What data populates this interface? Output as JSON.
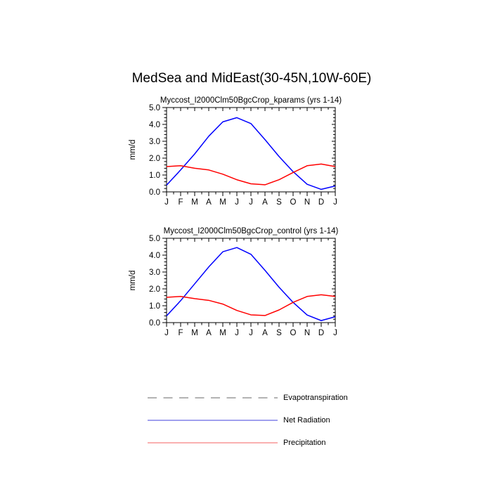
{
  "page": {
    "title": "MedSea and MidEast(30-45N,10W-60E)"
  },
  "axis_style": {
    "axis_color": "#000000",
    "background": "#ffffff"
  },
  "chart_data": [
    {
      "type": "line",
      "title": "Myccost_I2000Clm50BgcCrop_kparams (yrs 1-14)",
      "ylabel": "mm/d",
      "ylim": [
        0.0,
        5.0
      ],
      "ytick_labels": [
        "0.0",
        "1.0",
        "2.0",
        "3.0",
        "4.0",
        "5.0"
      ],
      "yminor_step": 0.2,
      "x_labels": [
        "J",
        "F",
        "M",
        "A",
        "M",
        "J",
        "J",
        "A",
        "S",
        "O",
        "N",
        "D",
        "J"
      ],
      "grid": false,
      "legend_position": "none",
      "series": [
        {
          "name": "Net Radiation",
          "color": "#0000ff",
          "values": [
            0.4,
            1.3,
            2.25,
            3.3,
            4.15,
            4.4,
            4.05,
            3.1,
            2.1,
            1.2,
            0.45,
            0.15,
            0.35
          ]
        },
        {
          "name": "Precipitation",
          "color": "#ff0000",
          "values": [
            1.5,
            1.55,
            1.4,
            1.3,
            1.05,
            0.72,
            0.48,
            0.42,
            0.72,
            1.15,
            1.55,
            1.65,
            1.5
          ]
        }
      ]
    },
    {
      "type": "line",
      "title": "Myccost_I2000Clm50BgcCrop_control (yrs 1-14)",
      "ylabel": "mm/d",
      "ylim": [
        0.0,
        5.0
      ],
      "ytick_labels": [
        "0.0",
        "1.0",
        "2.0",
        "3.0",
        "4.0",
        "5.0"
      ],
      "yminor_step": 0.2,
      "x_labels": [
        "J",
        "F",
        "M",
        "A",
        "M",
        "J",
        "J",
        "A",
        "S",
        "O",
        "N",
        "D",
        "J"
      ],
      "grid": false,
      "legend_position": "none",
      "series": [
        {
          "name": "Net Radiation",
          "color": "#0000ff",
          "values": [
            0.4,
            1.3,
            2.3,
            3.3,
            4.2,
            4.45,
            4.05,
            3.1,
            2.1,
            1.2,
            0.45,
            0.12,
            0.35
          ]
        },
        {
          "name": "Precipitation",
          "color": "#ff0000",
          "values": [
            1.5,
            1.55,
            1.42,
            1.32,
            1.1,
            0.72,
            0.46,
            0.42,
            0.75,
            1.2,
            1.55,
            1.65,
            1.55
          ]
        }
      ]
    }
  ],
  "legend": {
    "items": [
      {
        "label": "Evapotranspiration",
        "style": "dashed",
        "color": "#b3b3b3"
      },
      {
        "label": "Net Radiation",
        "style": "solid",
        "color": "#8080e8"
      },
      {
        "label": "Precipitation",
        "style": "solid",
        "color": "#f89595"
      }
    ]
  }
}
